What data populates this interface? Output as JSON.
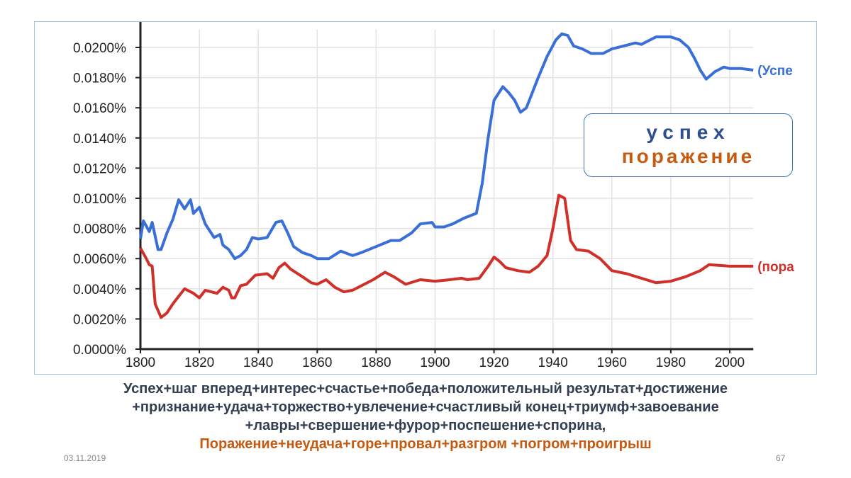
{
  "chart_data": {
    "type": "line",
    "title": "",
    "xlabel": "",
    "ylabel": "",
    "xlim": [
      1800,
      2008
    ],
    "ylim": [
      0,
      0.021
    ],
    "grid": true,
    "x_ticks": [
      "1800",
      "1820",
      "1840",
      "1860",
      "1880",
      "1900",
      "1920",
      "1940",
      "1960",
      "1980",
      "2000"
    ],
    "y_ticks": [
      "0.0000%",
      "0.0020%",
      "0.0040%",
      "0.0060%",
      "0.0080%",
      "0.0100%",
      "0.0120%",
      "0.0140%",
      "0.0160%",
      "0.0180%",
      "0.0200%"
    ],
    "series": [
      {
        "name": "(Успе",
        "color": "#3a6fd8",
        "x": [
          1800,
          1801,
          1803,
          1804,
          1806,
          1807,
          1809,
          1811,
          1813,
          1815,
          1817,
          1818,
          1820,
          1822,
          1825,
          1827,
          1828,
          1830,
          1832,
          1834,
          1836,
          1838,
          1840,
          1843,
          1846,
          1848,
          1850,
          1852,
          1855,
          1858,
          1860,
          1864,
          1868,
          1872,
          1875,
          1880,
          1885,
          1888,
          1892,
          1895,
          1899,
          1900,
          1903,
          1906,
          1910,
          1914,
          1916,
          1918,
          1920,
          1923,
          1925,
          1927,
          1929,
          1931,
          1933,
          1935,
          1938,
          1941,
          1943,
          1945,
          1947,
          1950,
          1953,
          1957,
          1960,
          1964,
          1968,
          1970,
          1975,
          1980,
          1983,
          1986,
          1988,
          1990,
          1992,
          1995,
          1998,
          2000,
          2004,
          2008
        ],
        "y": [
          0.0073,
          0.0085,
          0.0078,
          0.0084,
          0.0066,
          0.0066,
          0.0077,
          0.0086,
          0.0099,
          0.0093,
          0.0099,
          0.009,
          0.0094,
          0.0083,
          0.0074,
          0.0076,
          0.0069,
          0.0066,
          0.006,
          0.0062,
          0.0066,
          0.0074,
          0.0073,
          0.0074,
          0.0084,
          0.0085,
          0.0077,
          0.0068,
          0.0064,
          0.0062,
          0.006,
          0.006,
          0.0065,
          0.0062,
          0.0064,
          0.0068,
          0.0072,
          0.0072,
          0.0077,
          0.0083,
          0.0084,
          0.0081,
          0.0081,
          0.0083,
          0.0087,
          0.009,
          0.011,
          0.014,
          0.0165,
          0.0174,
          0.017,
          0.0165,
          0.0157,
          0.016,
          0.017,
          0.018,
          0.0194,
          0.0205,
          0.0209,
          0.0208,
          0.0201,
          0.0199,
          0.0196,
          0.0196,
          0.0199,
          0.0201,
          0.0203,
          0.0202,
          0.0207,
          0.0207,
          0.0205,
          0.02,
          0.0193,
          0.0185,
          0.0179,
          0.0184,
          0.0187,
          0.0186,
          0.0186,
          0.0185
        ]
      },
      {
        "name": "(пора",
        "color": "#d0302a",
        "x": [
          1800,
          1802,
          1803,
          1804,
          1805,
          1807,
          1809,
          1811,
          1813,
          1815,
          1818,
          1820,
          1822,
          1826,
          1828,
          1830,
          1831,
          1832,
          1834,
          1836,
          1839,
          1843,
          1845,
          1847,
          1849,
          1851,
          1855,
          1858,
          1860,
          1863,
          1866,
          1869,
          1872,
          1875,
          1879,
          1883,
          1886,
          1890,
          1895,
          1900,
          1905,
          1909,
          1911,
          1915,
          1918,
          1920,
          1922,
          1924,
          1928,
          1932,
          1935,
          1938,
          1940,
          1942,
          1944,
          1946,
          1948,
          1952,
          1956,
          1960,
          1965,
          1970,
          1975,
          1980,
          1985,
          1990,
          1993,
          2000,
          2008
        ],
        "y": [
          0.0067,
          0.006,
          0.0056,
          0.0055,
          0.003,
          0.0021,
          0.0024,
          0.003,
          0.0035,
          0.004,
          0.0037,
          0.0034,
          0.0039,
          0.0037,
          0.0041,
          0.0039,
          0.0034,
          0.0034,
          0.0042,
          0.0043,
          0.0049,
          0.005,
          0.0047,
          0.0054,
          0.0057,
          0.0053,
          0.0048,
          0.0044,
          0.0043,
          0.0046,
          0.0041,
          0.0038,
          0.0039,
          0.0042,
          0.0046,
          0.0051,
          0.0048,
          0.0043,
          0.0046,
          0.0045,
          0.0046,
          0.0047,
          0.0046,
          0.0047,
          0.0055,
          0.0061,
          0.0058,
          0.0054,
          0.0052,
          0.0051,
          0.0055,
          0.0062,
          0.008,
          0.0102,
          0.01,
          0.0072,
          0.0066,
          0.0065,
          0.006,
          0.0052,
          0.005,
          0.0047,
          0.0044,
          0.0045,
          0.0048,
          0.0052,
          0.0056,
          0.0055,
          0.0055
        ]
      }
    ]
  },
  "legend": {
    "line1": "успех",
    "line2": "поражение"
  },
  "caption": {
    "line1": "Успех+шаг вперед+интерес+счастье+победа+положительный результат+достижение",
    "line2": "+признание+удача+торжество+увлечение+счастливый конец+триумф+завоевание",
    "line3": "+лавры+свершение+фурор+поспешение+спорина,",
    "line4": "Поражение+неудача+горе+провал+разгром +погром+проигрыш"
  },
  "footer": {
    "date": "03.11.2019",
    "page": "67"
  }
}
